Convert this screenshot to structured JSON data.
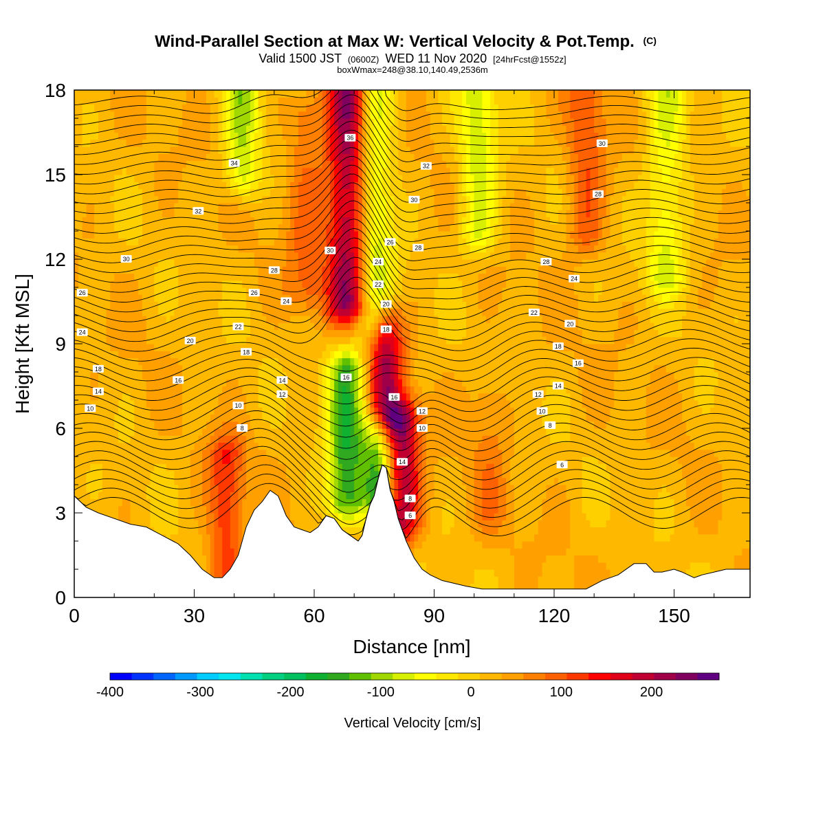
{
  "header": {
    "title_main": "Wind-Parallel Section at Max W: Vertical Velocity & Pot.Temp.",
    "title_mark": "(C)",
    "subtitle_a": "Valid 1500 JST",
    "subtitle_b": "(0600Z)",
    "subtitle_c": "WED 11 Nov 2020",
    "subtitle_d": "[24hrFcst@1552z]",
    "info_line": "boxWmax=248@38.10,140.49,2536m"
  },
  "chart_data": {
    "type": "heatmap",
    "title": "Wind-Parallel Section at Max W: Vertical Velocity & Pot.Temp.",
    "xlabel": "Distance [nm]",
    "ylabel": "Height [Kft MSL]",
    "xlim": [
      0,
      169
    ],
    "ylim": [
      0,
      18
    ],
    "x_ticks": [
      0,
      30,
      60,
      90,
      120,
      150
    ],
    "y_ticks": [
      0,
      3,
      6,
      9,
      12,
      15,
      18
    ],
    "x_tick_labels": [
      "0",
      "30",
      "60",
      "90",
      "120",
      "150"
    ],
    "y_tick_labels": [
      "0",
      "3",
      "6",
      "9",
      "12",
      "15",
      "18"
    ],
    "colorbar": {
      "label": "Vertical Velocity [cm/s]",
      "range": [
        -400,
        275
      ],
      "tick_values": [
        -400,
        -300,
        -200,
        -100,
        0,
        100,
        200
      ],
      "tick_labels": [
        "-400",
        "-300",
        "-200",
        "-100",
        "0",
        "100",
        "200"
      ],
      "colors": [
        "#0000ff",
        "#0033ff",
        "#0066ff",
        "#0099ff",
        "#00ccff",
        "#00e5ee",
        "#00e0b0",
        "#00d080",
        "#00c060",
        "#10b030",
        "#30a820",
        "#60c000",
        "#a0d800",
        "#d8f000",
        "#ffff00",
        "#ffe800",
        "#ffd000",
        "#ffb800",
        "#ffa000",
        "#ff8000",
        "#ff6000",
        "#ff3800",
        "#ff0000",
        "#e00018",
        "#c00030",
        "#a00048",
        "#800060",
        "#600080"
      ]
    },
    "w_features": [
      {
        "x": 69,
        "zlo": 10.5,
        "zhi": 18,
        "w": 230
      },
      {
        "x": 78,
        "zlo": 6.5,
        "zhi": 9.5,
        "w": 170
      },
      {
        "x": 82,
        "zlo": 2.8,
        "zhi": 6.2,
        "w": 180
      },
      {
        "x": 74,
        "zlo": 10,
        "zhi": 18,
        "w": -140
      },
      {
        "x": 68,
        "zlo": 3.5,
        "zhi": 8,
        "w": -170
      },
      {
        "x": 76,
        "zlo": 3.8,
        "zhi": 5.8,
        "w": -150
      },
      {
        "x": 42,
        "zlo": 15,
        "zhi": 18,
        "w": -110
      },
      {
        "x": 101,
        "zlo": 13,
        "zhi": 18,
        "w": -100
      },
      {
        "x": 148,
        "zlo": 11.5,
        "zhi": 18,
        "w": -90
      },
      {
        "x": 128,
        "zlo": 13,
        "zhi": 18,
        "w": 80
      },
      {
        "x": 38,
        "zlo": 1,
        "zhi": 5,
        "w": 100
      },
      {
        "x": 58,
        "zlo": 11,
        "zhi": 17,
        "w": 60
      },
      {
        "x": 104,
        "zlo": 3,
        "zhi": 7,
        "w": 40
      }
    ],
    "contour_labels": [
      {
        "x": 69,
        "y": 16.3,
        "text": "36"
      },
      {
        "x": 40,
        "y": 15.4,
        "text": "34"
      },
      {
        "x": 88,
        "y": 15.3,
        "text": "32"
      },
      {
        "x": 31,
        "y": 13.7,
        "text": "32"
      },
      {
        "x": 85,
        "y": 14.1,
        "text": "30"
      },
      {
        "x": 132,
        "y": 16.1,
        "text": "30"
      },
      {
        "x": 131,
        "y": 14.3,
        "text": "28"
      },
      {
        "x": 13,
        "y": 12.0,
        "text": "30"
      },
      {
        "x": 64,
        "y": 12.3,
        "text": "30"
      },
      {
        "x": 79,
        "y": 12.6,
        "text": "26"
      },
      {
        "x": 86,
        "y": 12.4,
        "text": "28"
      },
      {
        "x": 76,
        "y": 11.9,
        "text": "24"
      },
      {
        "x": 118,
        "y": 11.9,
        "text": "28"
      },
      {
        "x": 2,
        "y": 10.8,
        "text": "26"
      },
      {
        "x": 50,
        "y": 11.6,
        "text": "28"
      },
      {
        "x": 125,
        "y": 11.3,
        "text": "24"
      },
      {
        "x": 76,
        "y": 11.1,
        "text": "22"
      },
      {
        "x": 45,
        "y": 10.8,
        "text": "26"
      },
      {
        "x": 53,
        "y": 10.5,
        "text": "24"
      },
      {
        "x": 78,
        "y": 10.4,
        "text": "20"
      },
      {
        "x": 2,
        "y": 9.4,
        "text": "24"
      },
      {
        "x": 41,
        "y": 9.6,
        "text": "22"
      },
      {
        "x": 115,
        "y": 10.1,
        "text": "22"
      },
      {
        "x": 124,
        "y": 9.7,
        "text": "20"
      },
      {
        "x": 78,
        "y": 9.5,
        "text": "18"
      },
      {
        "x": 29,
        "y": 9.1,
        "text": "20"
      },
      {
        "x": 43,
        "y": 8.7,
        "text": "18"
      },
      {
        "x": 121,
        "y": 8.9,
        "text": "18"
      },
      {
        "x": 6,
        "y": 8.1,
        "text": "18"
      },
      {
        "x": 126,
        "y": 8.3,
        "text": "16"
      },
      {
        "x": 68,
        "y": 7.8,
        "text": "16"
      },
      {
        "x": 26,
        "y": 7.7,
        "text": "16"
      },
      {
        "x": 52,
        "y": 7.7,
        "text": "14"
      },
      {
        "x": 121,
        "y": 7.5,
        "text": "14"
      },
      {
        "x": 6,
        "y": 7.3,
        "text": "14"
      },
      {
        "x": 52,
        "y": 7.2,
        "text": "12"
      },
      {
        "x": 116,
        "y": 7.2,
        "text": "12"
      },
      {
        "x": 80,
        "y": 7.1,
        "text": "16"
      },
      {
        "x": 4,
        "y": 6.7,
        "text": "10"
      },
      {
        "x": 41,
        "y": 6.8,
        "text": "10"
      },
      {
        "x": 117,
        "y": 6.6,
        "text": "10"
      },
      {
        "x": 87,
        "y": 6.6,
        "text": "12"
      },
      {
        "x": 87,
        "y": 6.0,
        "text": "10"
      },
      {
        "x": 42,
        "y": 6.0,
        "text": "8"
      },
      {
        "x": 119,
        "y": 6.1,
        "text": "8"
      },
      {
        "x": 82,
        "y": 4.8,
        "text": "14"
      },
      {
        "x": 122,
        "y": 4.7,
        "text": "6"
      },
      {
        "x": 84,
        "y": 3.5,
        "text": "8"
      },
      {
        "x": 84,
        "y": 2.9,
        "text": "6"
      }
    ],
    "terrain_top": [
      [
        0,
        3.6
      ],
      [
        3,
        3.2
      ],
      [
        6,
        3.0
      ],
      [
        10,
        2.8
      ],
      [
        14,
        2.6
      ],
      [
        18,
        2.5
      ],
      [
        22,
        2.2
      ],
      [
        26,
        1.9
      ],
      [
        29,
        1.5
      ],
      [
        32,
        1.0
      ],
      [
        35,
        0.7
      ],
      [
        37,
        0.7
      ],
      [
        39,
        1.0
      ],
      [
        41,
        1.5
      ],
      [
        43,
        2.5
      ],
      [
        45,
        3.1
      ],
      [
        47,
        3.4
      ],
      [
        49,
        3.8
      ],
      [
        51,
        3.6
      ],
      [
        53,
        2.9
      ],
      [
        55,
        2.5
      ],
      [
        57,
        2.4
      ],
      [
        59,
        2.3
      ],
      [
        61,
        2.5
      ],
      [
        63,
        2.9
      ],
      [
        65,
        2.8
      ],
      [
        67,
        2.4
      ],
      [
        69,
        2.2
      ],
      [
        71,
        2.0
      ],
      [
        72,
        2.2
      ],
      [
        73,
        2.8
      ],
      [
        74,
        3.3
      ],
      [
        75,
        3.6
      ],
      [
        76,
        4.2
      ],
      [
        77,
        4.7
      ],
      [
        78,
        4.6
      ],
      [
        79,
        3.8
      ],
      [
        80,
        3.4
      ],
      [
        81,
        2.8
      ],
      [
        83,
        2.0
      ],
      [
        85,
        1.4
      ],
      [
        87,
        1.0
      ],
      [
        89,
        0.8
      ],
      [
        92,
        0.6
      ],
      [
        95,
        0.5
      ],
      [
        98,
        0.4
      ],
      [
        102,
        0.3
      ],
      [
        110,
        0.3
      ],
      [
        120,
        0.3
      ],
      [
        128,
        0.3
      ],
      [
        132,
        0.6
      ],
      [
        136,
        0.8
      ],
      [
        140,
        1.2
      ],
      [
        143,
        1.2
      ],
      [
        145,
        0.9
      ],
      [
        147,
        0.9
      ],
      [
        150,
        1.0
      ],
      [
        152,
        0.9
      ],
      [
        155,
        0.7
      ],
      [
        157,
        0.8
      ],
      [
        160,
        0.9
      ],
      [
        163,
        1.0
      ],
      [
        169,
        1.0
      ]
    ]
  }
}
